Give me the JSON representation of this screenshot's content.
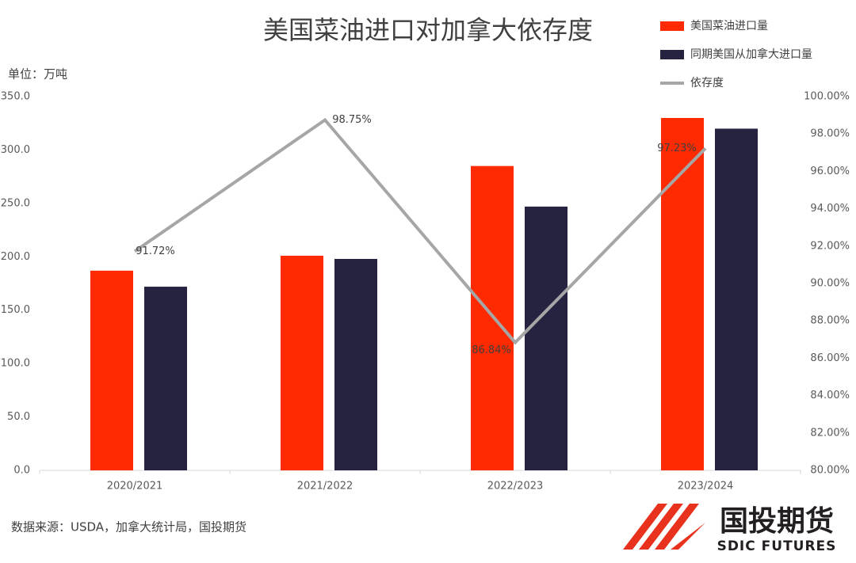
{
  "chart_data": {
    "type": "bar-line",
    "title": "美国菜油进口对加拿大依存度",
    "unit_label": "单位：万吨",
    "source": "数据来源：USDA，加拿大统计局，国投期货",
    "logo": {
      "name": "国投期货",
      "name_en": "SDIC FUTURES"
    },
    "categories": [
      "2020/2021",
      "2021/2022",
      "2022/2023",
      "2023/2024"
    ],
    "series": [
      {
        "name": "美国菜油进口量",
        "color": "#ff2a00",
        "type": "bar",
        "values": [
          187,
          201,
          285,
          330
        ]
      },
      {
        "name": "同期美国从加拿大进口量",
        "color": "#262341",
        "type": "bar",
        "values": [
          172,
          198,
          247,
          320
        ]
      },
      {
        "name": "依存度",
        "color": "#a6a6a6",
        "type": "line",
        "axis": "y2",
        "values": [
          91.72,
          98.75,
          86.84,
          97.23
        ],
        "value_labels": [
          "91.72%",
          "98.75%",
          "86.84%",
          "97.23%"
        ]
      }
    ],
    "ylim": [
      0,
      350
    ],
    "yticks": [
      {
        "value": 0,
        "label": "0.0"
      },
      {
        "value": 50,
        "label": "50.0"
      },
      {
        "value": 100,
        "label": "100.0"
      },
      {
        "value": 150,
        "label": "150.0"
      },
      {
        "value": 200,
        "label": "200.0"
      },
      {
        "value": 250,
        "label": "250.0"
      },
      {
        "value": 300,
        "label": "300.0"
      },
      {
        "value": 350,
        "label": "350.0"
      }
    ],
    "y2lim": [
      80,
      100
    ],
    "y2ticks": [
      {
        "value": 80,
        "label": "80.00%"
      },
      {
        "value": 82,
        "label": "82.00%"
      },
      {
        "value": 84,
        "label": "84.00%"
      },
      {
        "value": 86,
        "label": "86.00%"
      },
      {
        "value": 88,
        "label": "88.00%"
      },
      {
        "value": 90,
        "label": "90.00%"
      },
      {
        "value": 92,
        "label": "92.00%"
      },
      {
        "value": 94,
        "label": "94.00%"
      },
      {
        "value": 96,
        "label": "96.00%"
      },
      {
        "value": 98,
        "label": "98.00%"
      },
      {
        "value": 100,
        "label": "100.00%"
      }
    ],
    "grid": false
  }
}
